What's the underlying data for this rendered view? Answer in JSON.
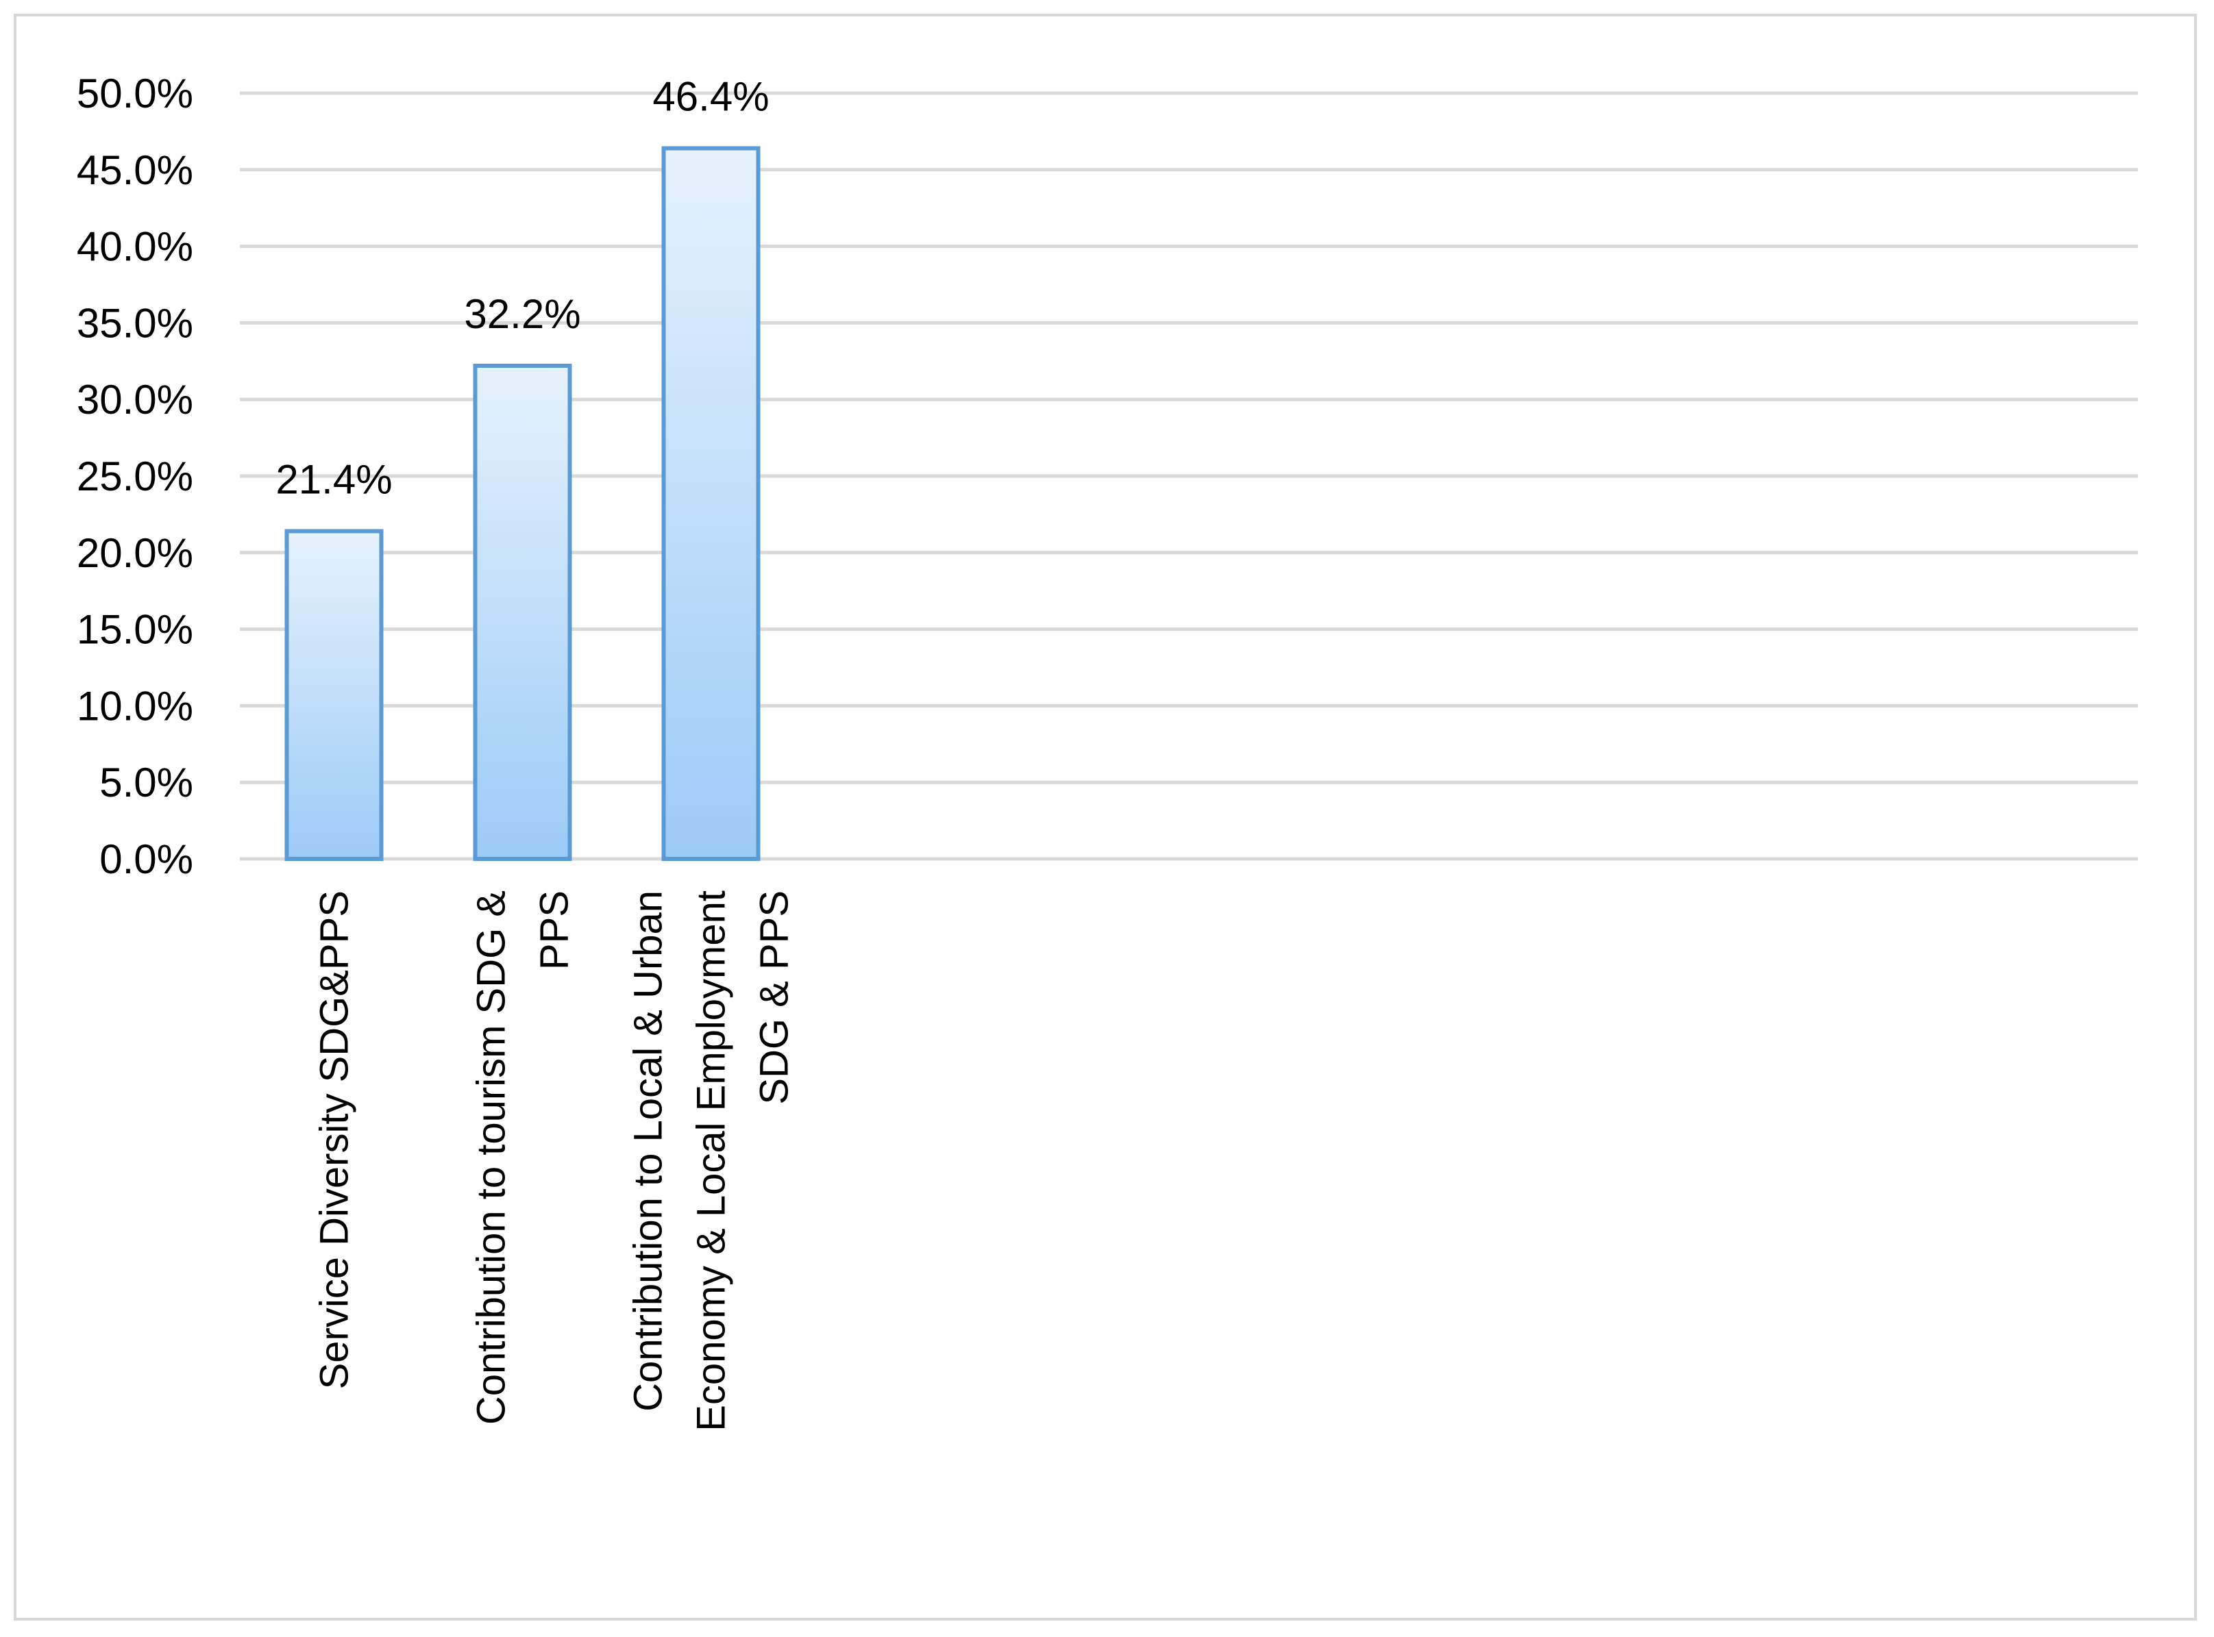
{
  "chart_data": {
    "type": "bar",
    "title": "",
    "xlabel": "",
    "ylabel": "",
    "categories": [
      [
        "Service Diversity SDG&PPS"
      ],
      [
        "Contribution to tourism SDG &",
        "PPS"
      ],
      [
        "Contribution to Local & Urban",
        "Economy & Local Employment",
        "SDG & PPS"
      ]
    ],
    "values": [
      21.4,
      32.2,
      46.4
    ],
    "data_labels": [
      "21.4%",
      "32.2%",
      "46.4%"
    ],
    "ylim": [
      0,
      50
    ],
    "y_ticks": [
      0,
      5,
      10,
      15,
      20,
      25,
      30,
      35,
      40,
      45,
      50
    ],
    "y_tick_labels": [
      "0.0%",
      "5.0%",
      "10.0%",
      "15.0%",
      "20.0%",
      "25.0%",
      "30.0%",
      "35.0%",
      "40.0%",
      "45.0%",
      "50.0%"
    ],
    "grid": true,
    "legend": "none",
    "colors": {
      "bar_fill_top": "#e6f2fc",
      "bar_fill_bottom": "#9ccbf7",
      "bar_border": "#5b9bd5",
      "gridline": "#d9d9d9",
      "frame": "#d9d9d9"
    }
  }
}
